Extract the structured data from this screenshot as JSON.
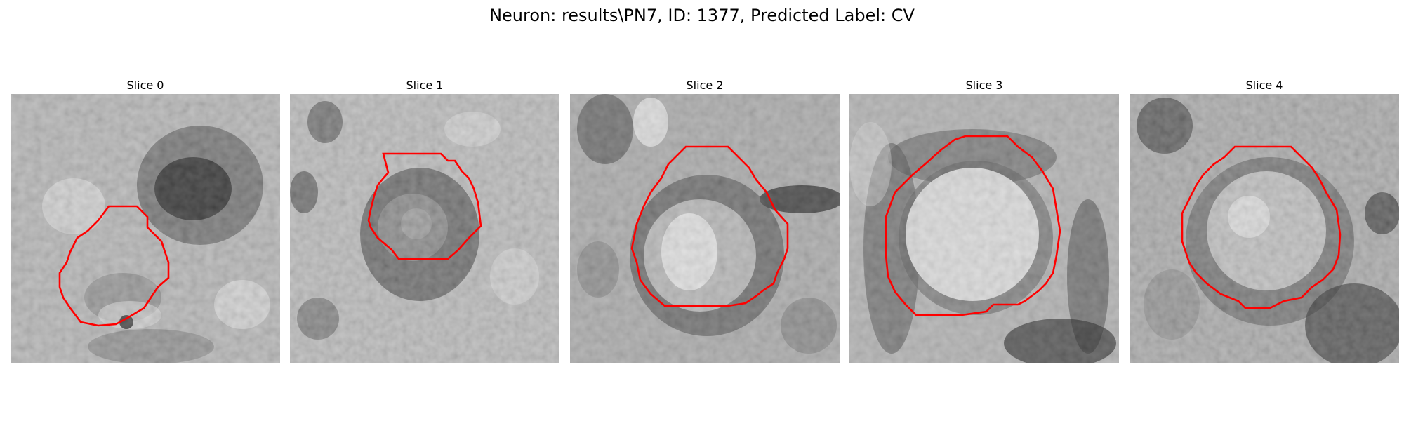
{
  "figure": {
    "title": "Neuron: results\\PN7, ID: 1377, Predicted Label: CV"
  },
  "panels": [
    {
      "title": "Slice 0",
      "image": "grayscale-em-slice",
      "contour_color": "#ff0000"
    },
    {
      "title": "Slice 1",
      "image": "grayscale-em-slice",
      "contour_color": "#ff0000"
    },
    {
      "title": "Slice 2",
      "image": "grayscale-em-slice",
      "contour_color": "#ff0000"
    },
    {
      "title": "Slice 3",
      "image": "grayscale-em-slice",
      "contour_color": "#ff0000"
    },
    {
      "title": "Slice 4",
      "image": "grayscale-em-slice",
      "contour_color": "#ff0000"
    }
  ]
}
